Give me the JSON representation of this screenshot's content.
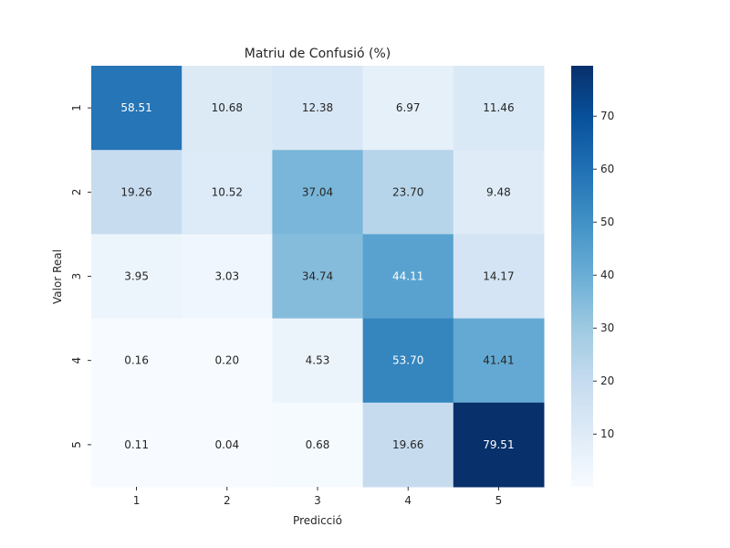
{
  "chart_data": {
    "type": "heatmap",
    "title": "Matriu de Confusió (%)",
    "xlabel": "Predicció",
    "ylabel": "Valor Real",
    "x_categories": [
      "1",
      "2",
      "3",
      "4",
      "5"
    ],
    "y_categories": [
      "1",
      "2",
      "3",
      "4",
      "5"
    ],
    "values": [
      [
        58.51,
        10.68,
        12.38,
        6.97,
        11.46
      ],
      [
        19.26,
        10.52,
        37.04,
        23.7,
        9.48
      ],
      [
        3.95,
        3.03,
        34.74,
        44.11,
        14.17
      ],
      [
        0.16,
        0.2,
        4.53,
        53.7,
        41.41
      ],
      [
        0.11,
        0.04,
        0.68,
        19.66,
        79.51
      ]
    ],
    "cell_labels": [
      [
        "58.51",
        "10.68",
        "12.38",
        "6.97",
        "11.46"
      ],
      [
        "19.26",
        "10.52",
        "37.04",
        "23.70",
        "9.48"
      ],
      [
        "3.95",
        "3.03",
        "34.74",
        "44.11",
        "14.17"
      ],
      [
        "0.16",
        "0.20",
        "4.53",
        "53.70",
        "41.41"
      ],
      [
        "0.11",
        "0.04",
        "0.68",
        "19.66",
        "79.51"
      ]
    ],
    "colormap": "Blues",
    "color_range": [
      0.04,
      79.51
    ],
    "colorbar_ticks": [
      "10",
      "20",
      "30",
      "40",
      "50",
      "60",
      "70"
    ],
    "grid": false,
    "legend": "colorbar-right"
  }
}
